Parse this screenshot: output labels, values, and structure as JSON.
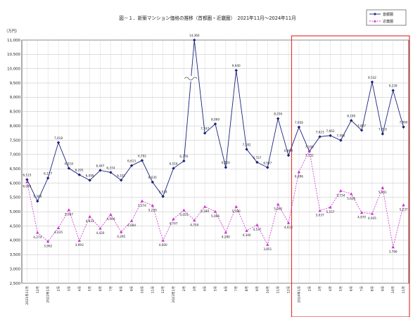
{
  "chart_data": {
    "type": "line",
    "title": "図－１．新築マンション価格の推移（首都圏・近畿圏）　2021年11月～2024年11月",
    "ylabel": "（万円）",
    "ylim": [
      2500,
      11000
    ],
    "ytick_step": 500,
    "grid": true,
    "legend_position": "top-right",
    "categories": [
      "2021年11月",
      "12月",
      "2022年1月",
      "2月",
      "3月",
      "4月",
      "5月",
      "6月",
      "7月",
      "8月",
      "9月",
      "10月",
      "11月",
      "12月",
      "2023年1月",
      "2月",
      "3月",
      "4月",
      "5月",
      "6月",
      "7月",
      "8月",
      "9月",
      "10月",
      "11月",
      "12月",
      "2024年1月",
      "2月",
      "3月",
      "4月",
      "5月",
      "6月",
      "7月",
      "8月",
      "9月",
      "10月",
      "11月"
    ],
    "series": [
      {
        "name": "首都圏",
        "color": "#1a237e",
        "values": [
          6123,
          5369,
          6177,
          7418,
          6518,
          6291,
          6099,
          6447,
          6374,
          6102,
          6613,
          6792,
          6035,
          5534,
          6516,
          6776,
          14360,
          7747,
          8069,
          6550,
          9940,
          7182,
          6727,
          6547,
          8256,
          6969,
          7956,
          7108,
          7623,
          7662,
          7496,
          8190,
          7847,
          9532,
          7719,
          9239,
          7960
        ]
      },
      {
        "name": "近畿圏",
        "color": "#cc33cc",
        "values": [
          6045,
          4274,
          3962,
          4435,
          5067,
          3993,
          4833,
          4420,
          4904,
          4295,
          4684,
          5374,
          5220,
          4000,
          4747,
          5055,
          4704,
          5180,
          5006,
          4280,
          5180,
          4340,
          4537,
          3851,
          5262,
          4612,
          6396,
          7132,
          5037,
          5157,
          5734,
          5626,
          4970,
          4935,
          5841,
          3766,
          5237
        ]
      }
    ],
    "data_labels_top": [
      "6,123",
      "5,369",
      "6,177",
      "7,418",
      "6,518",
      "6,291",
      "6,099",
      "6,447",
      "6,374",
      "6,102",
      "6,613",
      "6,792",
      "6,035",
      "5,534",
      "6,516",
      "6,776",
      "14,360",
      "7,747",
      "8,069",
      "6,550",
      "9,940",
      "7,182",
      "6,727",
      "6,547",
      "8,256",
      "6,969",
      "7,956",
      "7,108",
      "7,623",
      "7,662",
      "7,496",
      "8,190",
      "7,847",
      "9,532",
      "7,719",
      "9,239",
      "7,960"
    ],
    "data_labels_bottom": [
      "6,045",
      "4,274",
      "3,962",
      "4,435",
      "5,067",
      "3,993",
      "4,833",
      "4,420",
      "4,904",
      "4,295",
      "4,684",
      "5,374",
      "5,220",
      "4,000",
      "4,747",
      "5,055",
      "4,704",
      "5,180",
      "5,006",
      "4,280",
      "5,180",
      "4,340",
      "4,537",
      "3,851",
      "5,262",
      "4,612",
      "6,396",
      "7,132",
      "5,037",
      "5,157",
      "5,734",
      "5,626",
      "4,970",
      "4,935",
      "5,841",
      "3,766",
      "5,237"
    ],
    "axis_break": {
      "index": 16,
      "note": "value exceeds axis range; plotted at axis top with break mark"
    },
    "highlight_range": {
      "from": "2024年1月",
      "to": "11月",
      "color": "#e53935"
    }
  }
}
